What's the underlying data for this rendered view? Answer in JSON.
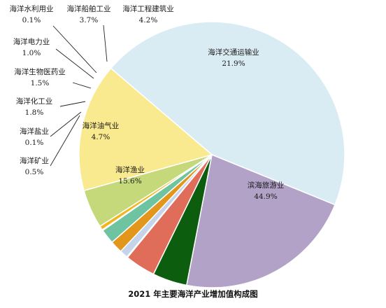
{
  "chart_data": {
    "type": "pie",
    "title": "2021 年主要海洋产业增加值构成图",
    "slices": [
      {
        "label": "滨海旅游业",
        "value": 44.9,
        "value_label": "44.9%",
        "color": "#daecf3"
      },
      {
        "label": "海洋交通运输业",
        "value": 21.9,
        "value_label": "21.9%",
        "color": "#b3a2c8"
      },
      {
        "label": "海洋工程建筑业",
        "value": 4.2,
        "value_label": "4.2%",
        "color": "#0c5d0e"
      },
      {
        "label": "海洋船舶工业",
        "value": 3.7,
        "value_label": "3.7%",
        "color": "#df6d5a"
      },
      {
        "label": "海洋水利用业",
        "value": 0.1,
        "value_label": "0.1%",
        "color": "#9eb5d9"
      },
      {
        "label": "海洋电力业",
        "value": 1.0,
        "value_label": "1.0%",
        "color": "#c5d4ea"
      },
      {
        "label": "海洋生物医药业",
        "value": 1.5,
        "value_label": "1.5%",
        "color": "#e2961b"
      },
      {
        "label": "海洋化工业",
        "value": 1.8,
        "value_label": "1.8%",
        "color": "#6ec3a0"
      },
      {
        "label": "海洋盐业",
        "value": 0.1,
        "value_label": "0.1%",
        "color": "#7fb2d6"
      },
      {
        "label": "海洋矿业",
        "value": 0.5,
        "value_label": "0.5%",
        "color": "#f2b51d"
      },
      {
        "label": "海洋油气业",
        "value": 4.7,
        "value_label": "4.7%",
        "color": "#c5d97a"
      },
      {
        "label": "海洋渔业",
        "value": 15.6,
        "value_label": "15.6%",
        "color": "#f9e98f"
      }
    ]
  }
}
